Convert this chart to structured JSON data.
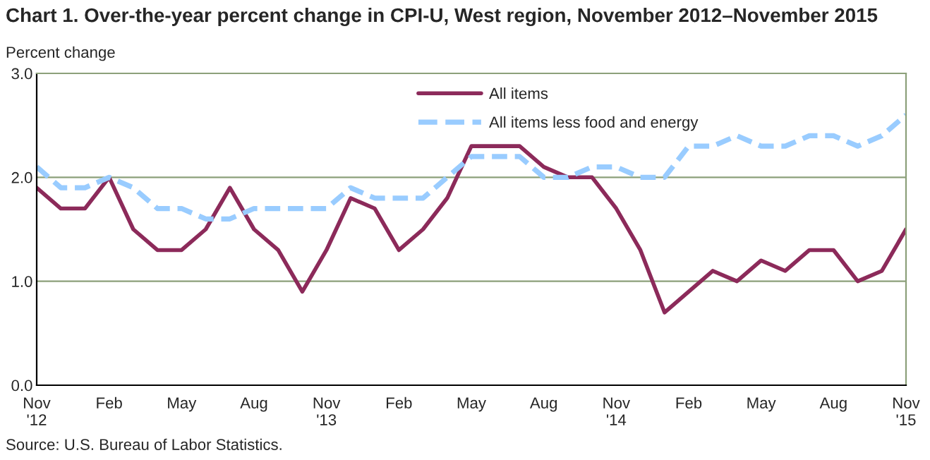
{
  "chart_data": {
    "type": "line",
    "title": "Chart 1. Over-the-year percent change in CPI-U, West region, November 2012–November 2015",
    "ylabel": "Percent change",
    "categories": [
      "Nov\n'12",
      null,
      null,
      "Feb",
      null,
      null,
      "May",
      null,
      null,
      "Aug",
      null,
      null,
      "Nov\n'13",
      null,
      null,
      "Feb",
      null,
      null,
      "May",
      null,
      null,
      "Aug",
      null,
      null,
      "Nov\n'14",
      null,
      null,
      "Feb",
      null,
      null,
      "May",
      null,
      null,
      "Aug",
      null,
      null,
      "Nov\n'15"
    ],
    "series": [
      {
        "name": "All items",
        "color": "#8c2a5a",
        "line_style": "solid",
        "values": [
          1.9,
          1.7,
          1.7,
          2.0,
          1.5,
          1.3,
          1.3,
          1.5,
          1.9,
          1.5,
          1.3,
          0.9,
          1.3,
          1.8,
          1.7,
          1.3,
          1.5,
          1.8,
          2.3,
          2.3,
          2.3,
          2.1,
          2.0,
          2.0,
          1.7,
          1.3,
          0.7,
          0.9,
          1.1,
          1.0,
          1.2,
          1.1,
          1.3,
          1.3,
          1.0,
          1.1,
          1.5
        ]
      },
      {
        "name": "All items less food and energy",
        "color": "#99ccff",
        "line_style": "dashed",
        "values": [
          2.1,
          1.9,
          1.9,
          2.0,
          1.9,
          1.7,
          1.7,
          1.6,
          1.6,
          1.7,
          1.7,
          1.7,
          1.7,
          1.9,
          1.8,
          1.8,
          1.8,
          2.0,
          2.2,
          2.2,
          2.2,
          2.0,
          2.0,
          2.1,
          2.1,
          2.0,
          2.0,
          2.3,
          2.3,
          2.4,
          2.3,
          2.3,
          2.4,
          2.4,
          2.3,
          2.4,
          2.6
        ]
      }
    ],
    "ylim": [
      0,
      3
    ],
    "yticks": [
      {
        "value": 0,
        "label": "0.0"
      },
      {
        "value": 1,
        "label": "1.0"
      },
      {
        "value": 2,
        "label": "2.0"
      },
      {
        "value": 3,
        "label": "3.0"
      }
    ],
    "grid": "y",
    "legend": "top",
    "annotations": [
      "Source: U.S. Bureau of Labor Statistics."
    ]
  }
}
